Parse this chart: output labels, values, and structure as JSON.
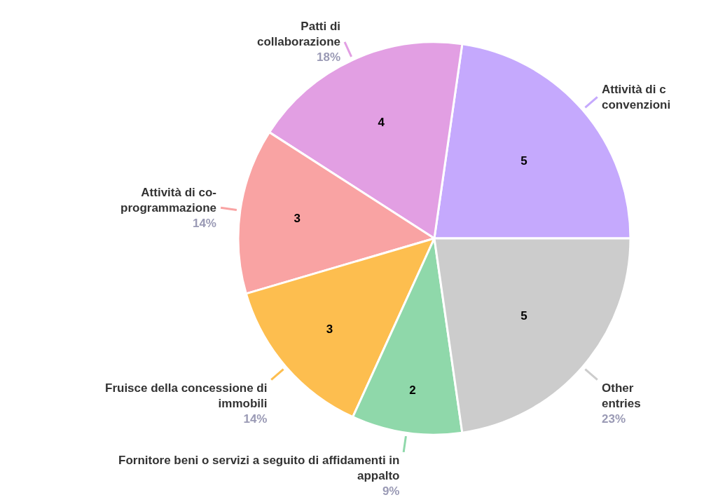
{
  "chart_data": {
    "type": "pie",
    "categories": [
      "Attività di c\nconvenzioni",
      "Patti di\ncollaborazione",
      "Attività di co-\nprogrammazione",
      "Fruisce della concessione di\nimmobili",
      "Fornitore beni o servizi a seguito di affidamenti in\nappalto",
      "Other\nentries"
    ],
    "values": [
      5,
      4,
      3,
      3,
      2,
      5
    ],
    "colors": [
      "#c5a9fd",
      "#e29fe3",
      "#f9a3a3",
      "#fdbe4f",
      "#8fd8aa",
      "#cccccc"
    ],
    "data_labels": true,
    "annotations": [
      {
        "text": "18%",
        "x": "Patti di\ncollaborazione"
      },
      {
        "text": "14%",
        "x": "Attività di co-\nprogrammazione"
      },
      {
        "text": "14%",
        "x": "Fruisce della concessione di\nimmobili"
      },
      {
        "text": "9%",
        "x": "Fornitore beni o servizi a seguito di affidamenti in\nappalto"
      },
      {
        "text": "23%",
        "x": "Other\nentries"
      }
    ]
  }
}
